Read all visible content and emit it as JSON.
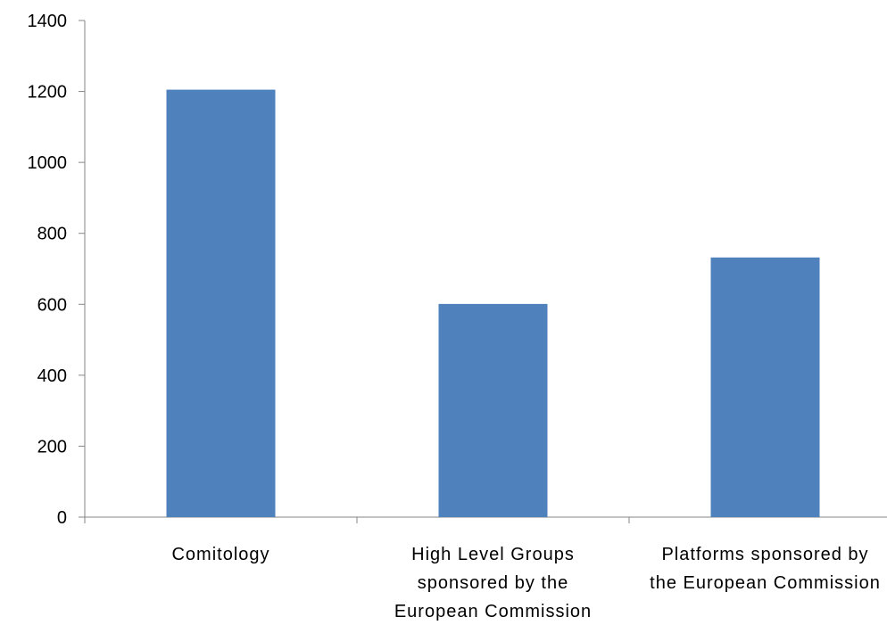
{
  "chart_data": {
    "type": "bar",
    "categories": [
      "Comitology",
      "High Level Groups sponsored by the European Commission",
      "Platforms sponsored by the European Commission"
    ],
    "category_label_lines": [
      [
        "Comitology"
      ],
      [
        "High Level Groups",
        "sponsored by the",
        "European Commission"
      ],
      [
        "Platforms sponsored by",
        "the European Commission"
      ]
    ],
    "values": [
      1205,
      601,
      732
    ],
    "ylim": [
      0,
      1400
    ],
    "yticks": [
      "0",
      "200",
      "400",
      "600",
      "800",
      "1000",
      "1200",
      "1400"
    ],
    "title": "",
    "xlabel": "",
    "ylabel": "",
    "grid": false,
    "legend": "none",
    "bar_color": "#4F81BD",
    "axis_color": "#868686"
  }
}
